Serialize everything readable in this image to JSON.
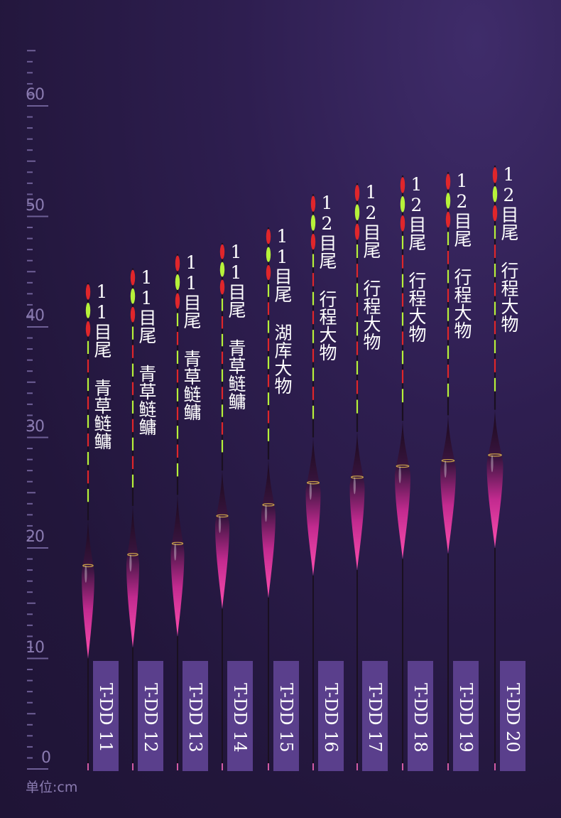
{
  "ruler": {
    "ticks": [
      "60",
      "50",
      "40",
      "30",
      "20",
      "10",
      "0"
    ],
    "unit": "单位:cm"
  },
  "floats": [
    {
      "model": "T-DD 11",
      "desc": "11目尾 青草鲢鳙",
      "height_cm": 44.0
    },
    {
      "model": "T-DD 12",
      "desc": "11目尾 青草鲢鳙",
      "height_cm": 45.3
    },
    {
      "model": "T-DD 13",
      "desc": "11目尾 青草鲢鳙",
      "height_cm": 46.6
    },
    {
      "model": "T-DD 14",
      "desc": "11目尾 青草鲢鳙",
      "height_cm": 47.6
    },
    {
      "model": "T-DD 15",
      "desc": "11目尾 湖库大物",
      "height_cm": 49.0
    },
    {
      "model": "T-DD 16",
      "desc": "12目尾 行程大物",
      "height_cm": 52.0
    },
    {
      "model": "T-DD 17",
      "desc": "12目尾 行程大物",
      "height_cm": 53.0
    },
    {
      "model": "T-DD 18",
      "desc": "12目尾 行程大物",
      "height_cm": 53.7
    },
    {
      "model": "T-DD 19",
      "desc": "12目尾 行程大物",
      "height_cm": 54.0
    },
    {
      "model": "T-DD 20",
      "desc": "12目尾 行程大物",
      "height_cm": 54.6
    }
  ],
  "colors": {
    "tip_red": "#e0262b",
    "tip_green": "#b6f23a",
    "body_pink": "#e02f9a",
    "body_dark": "#2a1030",
    "label_bg": "#5a3f8c"
  }
}
